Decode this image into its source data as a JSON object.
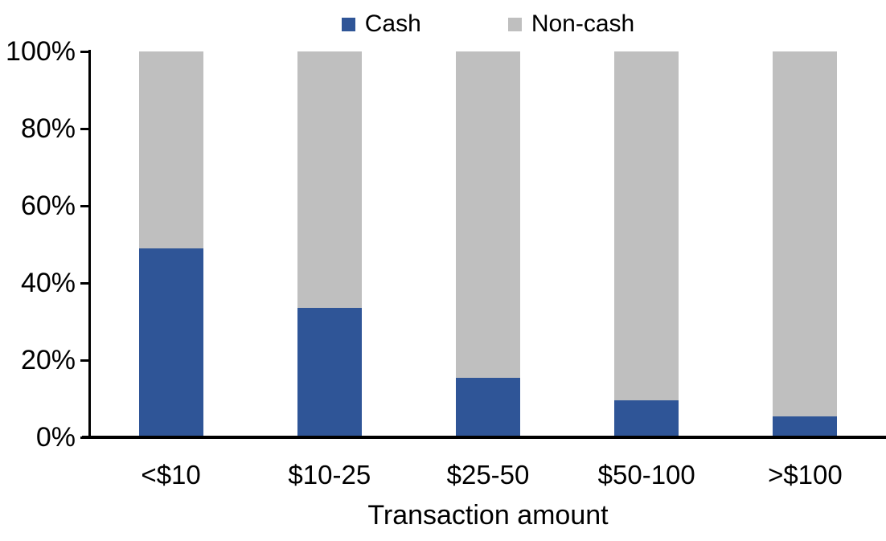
{
  "chart_data": {
    "type": "bar",
    "stacked": true,
    "percent_stacked": true,
    "title": "",
    "xlabel": "Transaction amount",
    "ylabel": "",
    "categories": [
      "<$10",
      "$10-25",
      "$25-50",
      "$50-100",
      ">$100"
    ],
    "series": [
      {
        "name": "Cash",
        "color": "#2F5597",
        "values": [
          49,
          33.5,
          15.5,
          9.5,
          5.5
        ]
      },
      {
        "name": "Non-cash",
        "color": "#BFBFBF",
        "values": [
          51,
          66.5,
          84.5,
          90.5,
          94.5
        ]
      }
    ],
    "ylim": [
      0,
      100
    ],
    "yticks": [
      "0%",
      "20%",
      "40%",
      "60%",
      "80%",
      "100%"
    ],
    "legend_position": "top",
    "grid": false,
    "axis_color": "#000000",
    "background_color": "#FFFFFF"
  }
}
